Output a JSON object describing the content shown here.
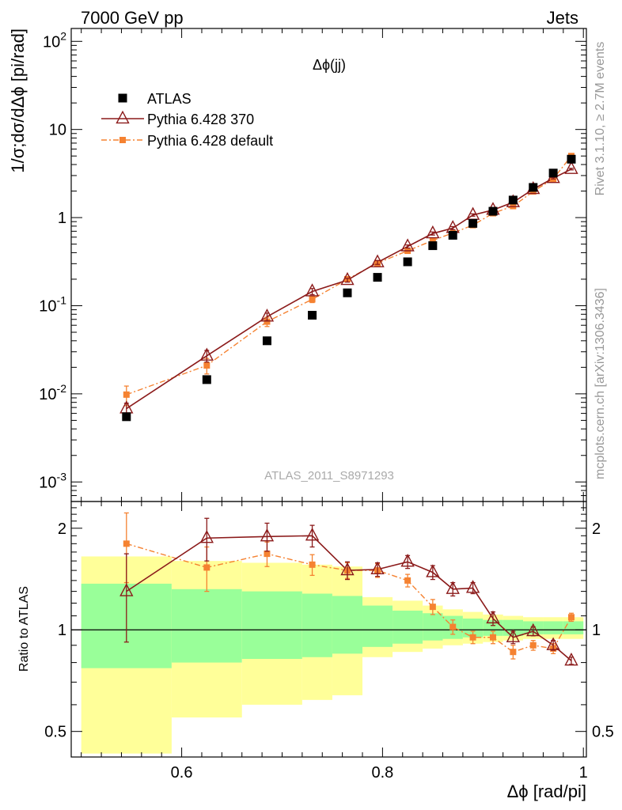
{
  "header": {
    "left": "7000 GeV pp",
    "right": "Jets"
  },
  "side_text": {
    "rivet": "Rivet 3.1.10, ≥ 2.7M events",
    "mcplots": "mcplots.cern.ch [arXiv:1306.3436]"
  },
  "chart_data": [
    {
      "panel": "main",
      "type": "scatter",
      "title": "Δϕ(jj)",
      "watermark": "ATLAS_2011_S8971293",
      "ylabel": "1/σ;dσ/dΔϕ [pi/rad]",
      "yscale": "log",
      "ylim": [
        0.0006,
        140
      ],
      "xlim": [
        0.49,
        1.003
      ],
      "ytick_labels": [
        "10^-3",
        "10^-2",
        "10^-1",
        "1",
        "10",
        "10^2"
      ],
      "legend": {
        "placement": "top-left",
        "entries": [
          "ATLAS",
          "Pythia 6.428 370",
          "Pythia 6.428 default"
        ]
      },
      "series": [
        {
          "name": "ATLAS",
          "color": "#000000",
          "marker": "square",
          "x": [
            0.545,
            0.625,
            0.685,
            0.73,
            0.765,
            0.795,
            0.825,
            0.85,
            0.87,
            0.89,
            0.91,
            0.93,
            0.95,
            0.97,
            0.988
          ],
          "y": [
            0.0055,
            0.0145,
            0.04,
            0.078,
            0.14,
            0.21,
            0.315,
            0.48,
            0.63,
            0.86,
            1.18,
            1.58,
            2.2,
            3.2,
            4.6
          ]
        },
        {
          "name": "Pythia 6.428 370",
          "color": "#8b1a1a",
          "marker": "open-triangle",
          "line": "solid",
          "x": [
            0.545,
            0.625,
            0.685,
            0.73,
            0.765,
            0.795,
            0.825,
            0.85,
            0.87,
            0.89,
            0.91,
            0.93,
            0.95,
            0.97,
            0.988
          ],
          "y": [
            0.0068,
            0.027,
            0.075,
            0.145,
            0.195,
            0.31,
            0.47,
            0.66,
            0.76,
            1.07,
            1.22,
            1.49,
            2.1,
            2.8,
            3.55
          ],
          "yerr_rel": [
            0.15,
            0.15,
            0.1,
            0.08,
            0.05,
            0.05,
            0.04,
            0.04,
            0.04,
            0.03,
            0.03,
            0.03,
            0.02,
            0.02,
            0.02
          ]
        },
        {
          "name": "Pythia 6.428 default",
          "color": "#f58231",
          "marker": "filled-square",
          "line": "dashdot",
          "x": [
            0.545,
            0.625,
            0.685,
            0.73,
            0.765,
            0.795,
            0.825,
            0.85,
            0.87,
            0.89,
            0.91,
            0.93,
            0.95,
            0.97,
            0.988
          ],
          "y": [
            0.0098,
            0.021,
            0.066,
            0.118,
            0.2,
            0.305,
            0.42,
            0.55,
            0.67,
            0.82,
            1.12,
            1.35,
            1.98,
            2.75,
            5.0
          ],
          "yerr_rel": [
            0.25,
            0.2,
            0.12,
            0.08,
            0.05,
            0.05,
            0.04,
            0.04,
            0.04,
            0.03,
            0.03,
            0.03,
            0.02,
            0.02,
            0.02
          ]
        }
      ]
    },
    {
      "panel": "ratio",
      "type": "scatter",
      "ylabel": "Ratio to ATLAS",
      "xlabel": "Δϕ [rad/pi]",
      "yscale": "log",
      "ylim": [
        0.42,
        2.4
      ],
      "xlim": [
        0.49,
        1.003
      ],
      "xticks": [
        0.6,
        0.8,
        1
      ],
      "xtick_labels": [
        "0.6",
        "0.8",
        "1"
      ],
      "yticks": [
        0.5,
        1,
        2
      ],
      "ytick_labels": [
        "0.5",
        "1",
        "2"
      ],
      "bands": {
        "x_edges": [
          0.5,
          0.59,
          0.66,
          0.72,
          0.75,
          0.78,
          0.81,
          0.84,
          0.86,
          0.88,
          0.9,
          0.92,
          0.94,
          0.96,
          0.98,
          1.0
        ],
        "green_lo": [
          0.77,
          0.8,
          0.82,
          0.83,
          0.85,
          0.89,
          0.91,
          0.93,
          0.94,
          0.95,
          0.96,
          0.96,
          0.97,
          0.97,
          0.97
        ],
        "green_hi": [
          1.37,
          1.32,
          1.3,
          1.28,
          1.26,
          1.18,
          1.14,
          1.12,
          1.1,
          1.08,
          1.07,
          1.07,
          1.06,
          1.06,
          1.06
        ],
        "yellow_lo": [
          0.43,
          0.55,
          0.6,
          0.62,
          0.64,
          0.83,
          0.86,
          0.88,
          0.9,
          0.91,
          0.92,
          0.93,
          0.94,
          0.94,
          0.94
        ],
        "yellow_hi": [
          1.65,
          1.6,
          1.58,
          1.56,
          1.54,
          1.25,
          1.22,
          1.18,
          1.15,
          1.13,
          1.11,
          1.1,
          1.09,
          1.09,
          1.09
        ]
      },
      "series": [
        {
          "name": "Pythia 6.428 370",
          "color": "#8b1a1a",
          "x": [
            0.545,
            0.625,
            0.685,
            0.73,
            0.765,
            0.795,
            0.825,
            0.85,
            0.87,
            0.89,
            0.91,
            0.93,
            0.95,
            0.97,
            0.988
          ],
          "y": [
            1.3,
            1.87,
            1.89,
            1.9,
            1.5,
            1.51,
            1.59,
            1.48,
            1.32,
            1.33,
            1.08,
            0.95,
            0.99,
            0.9,
            0.81
          ],
          "yerr": [
            0.38,
            0.27,
            0.18,
            0.14,
            0.09,
            0.07,
            0.07,
            0.07,
            0.06,
            0.05,
            0.05,
            0.04,
            0.03,
            0.03,
            0.02
          ]
        },
        {
          "name": "Pythia 6.428 default",
          "color": "#f58231",
          "x": [
            0.545,
            0.625,
            0.685,
            0.73,
            0.765,
            0.795,
            0.825,
            0.85,
            0.87,
            0.89,
            0.91,
            0.93,
            0.95,
            0.97,
            0.988
          ],
          "y": [
            1.8,
            1.53,
            1.68,
            1.56,
            1.5,
            1.5,
            1.4,
            1.17,
            1.02,
            0.95,
            0.95,
            0.86,
            0.9,
            0.88,
            1.09
          ],
          "yerr": [
            0.42,
            0.23,
            0.14,
            0.11,
            0.08,
            0.07,
            0.06,
            0.06,
            0.05,
            0.04,
            0.04,
            0.04,
            0.03,
            0.03,
            0.03
          ]
        }
      ]
    }
  ]
}
